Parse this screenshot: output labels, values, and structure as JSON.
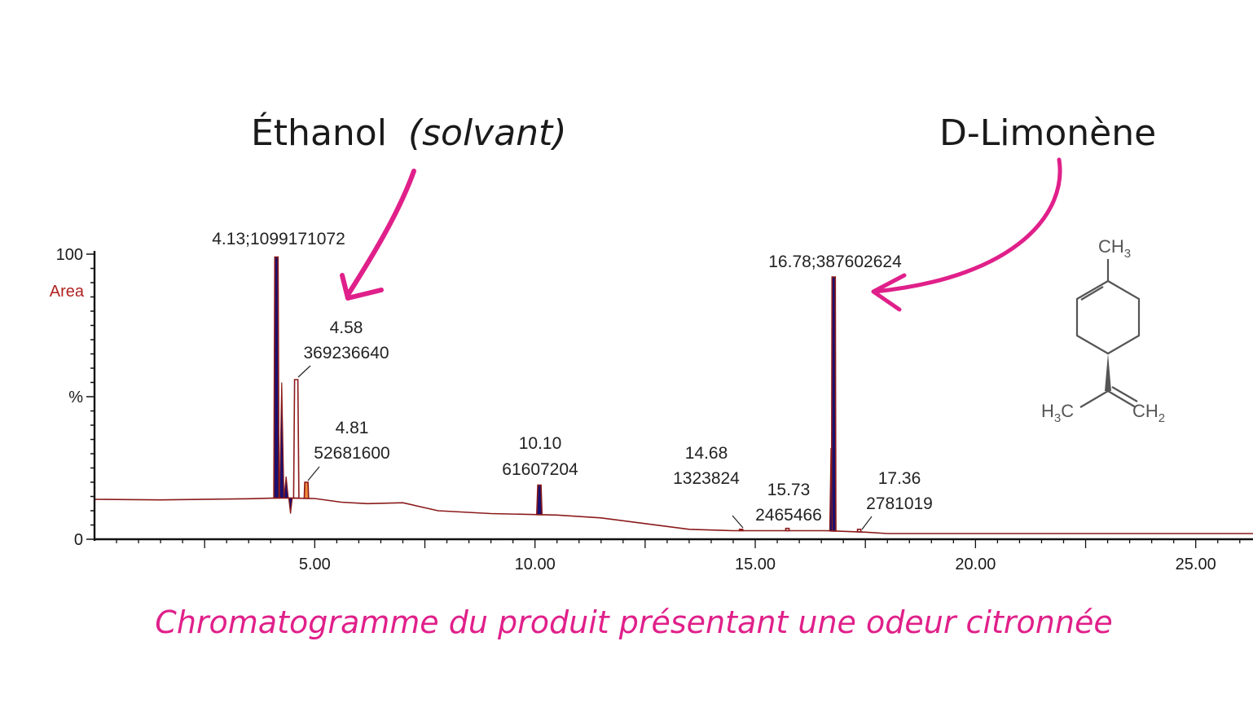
{
  "annotations": {
    "ethanol_name": "Éthanol",
    "ethanol_note": "(solvant)",
    "limonene": "D-Limonène"
  },
  "caption": "Chromatogramme du produit présentant une odeur citronnée",
  "molecule": {
    "ch3_top": "CH3",
    "h3c_left": "H3C",
    "ch2_right": "CH2"
  },
  "colors": {
    "accent": "#e0208a",
    "trace": "#8b1a1a",
    "peak_fill_dark": "#1a1070",
    "peak_fill_orange": "#f08a3a",
    "area_label": "#b22222"
  },
  "chart_data": {
    "type": "line",
    "title": "",
    "xlabel": "",
    "ylabel": "Area",
    "y_tick_labels": [
      "100",
      "%",
      "0"
    ],
    "y_ticks": [
      100,
      50,
      0
    ],
    "x_tick_labels": [
      "5.00",
      "10.00",
      "15.00",
      "20.00",
      "25.00"
    ],
    "x_ticks": [
      5,
      10,
      15,
      20,
      25
    ],
    "xlim": [
      0.0,
      26.3
    ],
    "ylim": [
      0,
      100
    ],
    "baseline": [
      [
        0.0,
        14.0
      ],
      [
        1.5,
        13.8
      ],
      [
        3.5,
        14.2
      ],
      [
        4.0,
        14.4
      ],
      [
        4.3,
        14.5
      ],
      [
        5.0,
        14.3
      ],
      [
        5.6,
        13.0
      ],
      [
        6.2,
        12.5
      ],
      [
        7.0,
        12.8
      ],
      [
        7.8,
        10.0
      ],
      [
        9.0,
        9.0
      ],
      [
        10.5,
        8.5
      ],
      [
        11.5,
        7.5
      ],
      [
        12.5,
        5.5
      ],
      [
        13.5,
        3.5
      ],
      [
        14.5,
        3.0
      ],
      [
        15.5,
        3.0
      ],
      [
        16.6,
        3.0
      ],
      [
        17.5,
        2.5
      ],
      [
        18.0,
        2.0
      ],
      [
        20.0,
        2.0
      ],
      [
        26.3,
        2.0
      ]
    ],
    "peaks": [
      {
        "rt": 4.13,
        "height": 99.0,
        "width": 0.06,
        "fill": "dark",
        "label_rt": "4.13;1099171072",
        "label_area": ""
      },
      {
        "rt": 4.58,
        "height": 56.0,
        "width": 0.06,
        "fill": "outline",
        "label_rt": "4.58",
        "label_area": "369236640"
      },
      {
        "rt": 4.81,
        "height": 20.0,
        "width": 0.05,
        "fill": "orange",
        "label_rt": "4.81",
        "label_area": "52681600"
      },
      {
        "rt": 10.1,
        "height": 19.0,
        "width": 0.06,
        "fill": "dark",
        "label_rt": "10.10",
        "label_area": "61607204"
      },
      {
        "rt": 14.68,
        "height": 3.5,
        "width": 0.04,
        "fill": "outline",
        "label_rt": "14.68",
        "label_area": "1323824"
      },
      {
        "rt": 15.73,
        "height": 3.8,
        "width": 0.04,
        "fill": "outline",
        "label_rt": "15.73",
        "label_area": "2465466"
      },
      {
        "rt": 16.78,
        "height": 92.0,
        "width": 0.05,
        "fill": "dark",
        "label_rt": "16.78;387602624",
        "label_area": ""
      },
      {
        "rt": 17.36,
        "height": 3.5,
        "width": 0.04,
        "fill": "outline",
        "label_rt": "17.36",
        "label_area": "2781019"
      }
    ],
    "grid": false,
    "legend": "none"
  }
}
